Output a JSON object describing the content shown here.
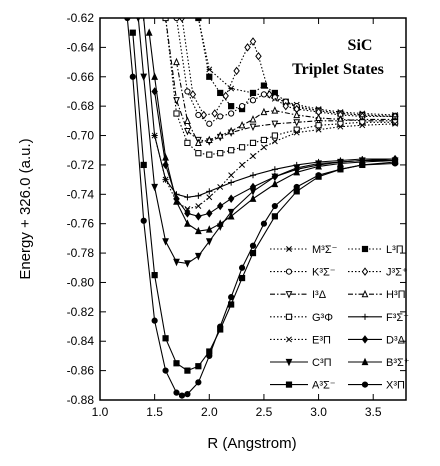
{
  "chart_data": {
    "type": "line",
    "title": "SiC",
    "subtitle": "Triplet States",
    "xlabel": "R (Angstrom)",
    "ylabel": "Energy + 326.0 (a.u.)",
    "xlim": [
      1.0,
      3.8
    ],
    "ylim": [
      -0.88,
      -0.62
    ],
    "xticks": [
      "1.0",
      "1.5",
      "2.0",
      "2.5",
      "3.0",
      "3.5"
    ],
    "yticks": [
      "-0.62",
      "-0.64",
      "-0.66",
      "-0.68",
      "-0.70",
      "-0.72",
      "-0.74",
      "-0.76",
      "-0.78",
      "-0.80",
      "-0.82",
      "-0.84",
      "-0.86",
      "-0.88"
    ],
    "grid": false,
    "legend_position": "bottom-right",
    "series": [
      {
        "name": "M³Σ⁻",
        "line": "dotted",
        "marker": "x-box",
        "x": [
          1.9,
          2.0,
          2.2,
          2.4,
          2.6,
          2.8,
          3.0,
          3.2,
          3.4,
          3.7
        ],
        "y": [
          -0.62,
          -0.655,
          -0.668,
          -0.671,
          -0.675,
          -0.679,
          -0.682,
          -0.684,
          -0.685,
          -0.686
        ]
      },
      {
        "name": "L³Π",
        "line": "dotted",
        "marker": "square",
        "x": [
          1.9,
          2.0,
          2.1,
          2.2,
          2.3,
          2.4,
          2.5,
          2.6,
          2.7,
          2.8,
          3.0,
          3.2,
          3.4,
          3.7
        ],
        "y": [
          -0.62,
          -0.66,
          -0.671,
          -0.68,
          -0.682,
          -0.671,
          -0.666,
          -0.671,
          -0.677,
          -0.681,
          -0.683,
          -0.685,
          -0.686,
          -0.687
        ]
      },
      {
        "name": "K³Σ⁻",
        "line": "dotted",
        "marker": "circle-open",
        "x": [
          1.7,
          1.8,
          1.9,
          2.0,
          2.1,
          2.2,
          2.3,
          2.4,
          2.5,
          2.6,
          2.7,
          2.8,
          3.0,
          3.2,
          3.4,
          3.7
        ],
        "y": [
          -0.62,
          -0.67,
          -0.686,
          -0.692,
          -0.687,
          -0.685,
          -0.68,
          -0.676,
          -0.672,
          -0.674,
          -0.677,
          -0.68,
          -0.683,
          -0.685,
          -0.686,
          -0.687
        ]
      },
      {
        "name": "J³Σ⁺",
        "line": "dotted",
        "marker": "diamond-open",
        "x": [
          1.75,
          1.85,
          1.95,
          2.05,
          2.15,
          2.25,
          2.35,
          2.4,
          2.45,
          2.55,
          2.7,
          2.8,
          3.0,
          3.2,
          3.4,
          3.7
        ],
        "y": [
          -0.62,
          -0.672,
          -0.686,
          -0.685,
          -0.673,
          -0.656,
          -0.64,
          -0.636,
          -0.646,
          -0.672,
          -0.68,
          -0.682,
          -0.684,
          -0.686,
          -0.687,
          -0.687
        ]
      },
      {
        "name": "I³Δ",
        "line": "dashdot",
        "marker": "triangle-down-open",
        "x": [
          1.6,
          1.7,
          1.8,
          1.9,
          2.0,
          2.1,
          2.2,
          2.4,
          2.6,
          2.8,
          3.0,
          3.2,
          3.4,
          3.7
        ],
        "y": [
          -0.62,
          -0.676,
          -0.697,
          -0.703,
          -0.704,
          -0.701,
          -0.698,
          -0.694,
          -0.692,
          -0.691,
          -0.69,
          -0.69,
          -0.689,
          -0.689
        ]
      },
      {
        "name": "H³Π",
        "line": "dashdot",
        "marker": "triangle-up-open",
        "x": [
          1.7,
          1.8,
          1.9,
          2.0,
          2.1,
          2.2,
          2.3,
          2.4,
          2.5,
          2.6,
          2.8,
          3.0,
          3.2,
          3.4,
          3.7
        ],
        "y": [
          -0.65,
          -0.69,
          -0.705,
          -0.703,
          -0.7,
          -0.697,
          -0.693,
          -0.689,
          -0.684,
          -0.683,
          -0.686,
          -0.688,
          -0.689,
          -0.69,
          -0.69
        ]
      },
      {
        "name": "G³Φ",
        "line": "dotted",
        "marker": "square-open",
        "x": [
          1.6,
          1.7,
          1.8,
          1.9,
          2.0,
          2.1,
          2.2,
          2.3,
          2.4,
          2.5,
          2.6,
          2.8,
          3.0,
          3.2,
          3.4,
          3.7
        ],
        "y": [
          -0.62,
          -0.685,
          -0.705,
          -0.712,
          -0.713,
          -0.712,
          -0.71,
          -0.708,
          -0.705,
          -0.703,
          -0.7,
          -0.696,
          -0.693,
          -0.692,
          -0.691,
          -0.691
        ]
      },
      {
        "name": "F³Σ⁺",
        "line": "solid",
        "marker": "plus",
        "x": [
          1.4,
          1.5,
          1.6,
          1.7,
          1.8,
          1.9,
          2.0,
          2.2,
          2.4,
          2.6,
          2.8,
          3.0,
          3.2,
          3.4,
          3.7
        ],
        "y": [
          -0.62,
          -0.7,
          -0.73,
          -0.74,
          -0.742,
          -0.741,
          -0.738,
          -0.732,
          -0.727,
          -0.723,
          -0.72,
          -0.718,
          -0.717,
          -0.716,
          -0.716
        ]
      },
      {
        "name": "E³Π",
        "line": "dotted",
        "marker": "x",
        "x": [
          1.5,
          1.6,
          1.7,
          1.8,
          1.9,
          2.0,
          2.1,
          2.2,
          2.3,
          2.4,
          2.5,
          2.6,
          2.8,
          3.0,
          3.2,
          3.4,
          3.7
        ],
        "y": [
          -0.7,
          -0.73,
          -0.745,
          -0.75,
          -0.748,
          -0.742,
          -0.735,
          -0.727,
          -0.72,
          -0.714,
          -0.708,
          -0.704,
          -0.698,
          -0.696,
          -0.694,
          -0.693,
          -0.692
        ]
      },
      {
        "name": "D³Δ",
        "line": "solid",
        "marker": "diamond",
        "x": [
          1.5,
          1.6,
          1.7,
          1.8,
          1.9,
          2.0,
          2.1,
          2.2,
          2.4,
          2.6,
          2.8,
          3.0,
          3.2,
          3.4,
          3.7
        ],
        "y": [
          -0.67,
          -0.72,
          -0.743,
          -0.753,
          -0.755,
          -0.753,
          -0.748,
          -0.743,
          -0.735,
          -0.728,
          -0.723,
          -0.72,
          -0.718,
          -0.717,
          -0.716
        ]
      },
      {
        "name": "C³Π",
        "line": "solid",
        "marker": "triangle-down",
        "x": [
          1.35,
          1.4,
          1.5,
          1.6,
          1.7,
          1.8,
          1.9,
          2.0,
          2.1,
          2.2,
          2.4,
          2.6,
          2.8,
          3.0,
          3.2,
          3.4,
          3.7
        ],
        "y": [
          -0.62,
          -0.66,
          -0.735,
          -0.772,
          -0.786,
          -0.787,
          -0.782,
          -0.772,
          -0.762,
          -0.752,
          -0.738,
          -0.728,
          -0.722,
          -0.719,
          -0.718,
          -0.717,
          -0.717
        ]
      },
      {
        "name": "B³Σ⁺",
        "line": "solid",
        "marker": "triangle-up",
        "x": [
          1.45,
          1.5,
          1.6,
          1.7,
          1.8,
          1.9,
          2.0,
          2.1,
          2.2,
          2.4,
          2.6,
          2.8,
          3.0,
          3.2,
          3.4,
          3.7
        ],
        "y": [
          -0.63,
          -0.66,
          -0.715,
          -0.745,
          -0.76,
          -0.765,
          -0.764,
          -0.76,
          -0.755,
          -0.743,
          -0.733,
          -0.725,
          -0.721,
          -0.719,
          -0.718,
          -0.717
        ]
      },
      {
        "name": "A³Σ⁻",
        "line": "solid",
        "marker": "square",
        "x": [
          1.3,
          1.4,
          1.5,
          1.6,
          1.7,
          1.8,
          1.9,
          2.0,
          2.1,
          2.2,
          2.3,
          2.4,
          2.6,
          2.8,
          3.0,
          3.2,
          3.4,
          3.7
        ],
        "y": [
          -0.63,
          -0.72,
          -0.795,
          -0.838,
          -0.855,
          -0.86,
          -0.857,
          -0.847,
          -0.832,
          -0.815,
          -0.797,
          -0.78,
          -0.755,
          -0.738,
          -0.728,
          -0.723,
          -0.72,
          -0.718
        ]
      },
      {
        "name": "X³Π",
        "line": "solid",
        "marker": "circle",
        "x": [
          1.25,
          1.3,
          1.4,
          1.5,
          1.6,
          1.7,
          1.75,
          1.8,
          1.9,
          2.0,
          2.1,
          2.2,
          2.3,
          2.4,
          2.5,
          2.6,
          2.8,
          3.0,
          3.2,
          3.4,
          3.7
        ],
        "y": [
          -0.62,
          -0.66,
          -0.758,
          -0.826,
          -0.86,
          -0.875,
          -0.877,
          -0.876,
          -0.868,
          -0.85,
          -0.83,
          -0.81,
          -0.79,
          -0.775,
          -0.76,
          -0.748,
          -0.735,
          -0.727,
          -0.723,
          -0.72,
          -0.719
        ]
      }
    ]
  }
}
